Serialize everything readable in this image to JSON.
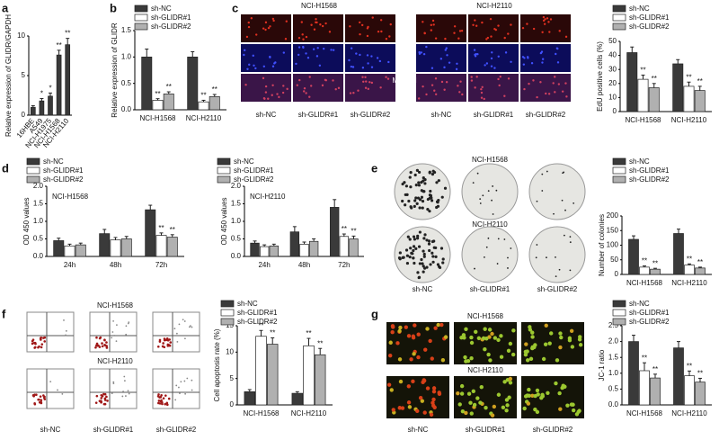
{
  "image_panels": {
    "labels": [
      "a",
      "b",
      "c",
      "d",
      "e",
      "f",
      "g"
    ],
    "c": {
      "cell_lines": [
        "NCI-H1568",
        "NCI-H2110"
      ],
      "stains": [
        "EdU",
        "DAPI",
        "Merged"
      ],
      "groups": [
        "sh-NC",
        "sh-GLIDR#1",
        "sh-GLIDR#2"
      ]
    },
    "e": {
      "cell_lines": [
        "NCI-H1568",
        "NCI-H2110"
      ],
      "groups": [
        "sh-NC",
        "sh-GLIDR#1",
        "sh-GLIDR#2"
      ]
    },
    "f": {
      "cell_lines": [
        "NCI-H1568",
        "NCI-H2110"
      ],
      "groups": [
        "sh-NC",
        "sh-GLIDR#1",
        "sh-GLIDR#2"
      ]
    },
    "g": {
      "cell_lines": [
        "NCI-H1568",
        "NCI-H2110"
      ],
      "groups": [
        "sh-NC",
        "sh-GLIDR#1",
        "sh-GLIDR#2"
      ]
    }
  },
  "chart_data": [
    {
      "type": "bar",
      "ylabel": "Relative expression of GLIDR/GAPDH",
      "categories": [
        "16HBE",
        "A549",
        "NCI-H1975",
        "NCI-H1568",
        "NCI-H2110"
      ],
      "color": "#3a3a3a",
      "values": [
        1,
        1.8,
        2.4,
        7.6,
        8.9
      ],
      "errors": [
        0.2,
        0.3,
        0.4,
        0.6,
        0.8
      ],
      "annotations": [
        null,
        "*",
        "*",
        "**",
        "**"
      ],
      "ylim": [
        0,
        10
      ],
      "yticks": [
        0,
        5,
        10
      ]
    },
    {
      "type": "bar",
      "ylabel": "Relative expression of GLIDR",
      "categories": [
        "NCI-H1568",
        "NCI-H2110"
      ],
      "series": [
        {
          "name": "sh-NC",
          "color": "#3a3a3a",
          "values": [
            1.0,
            1.0
          ],
          "errors": [
            0.15,
            0.1
          ],
          "annotations": [
            null,
            null
          ]
        },
        {
          "name": "sh-GLIDR#1",
          "color": "#ffffff",
          "values": [
            0.18,
            0.15
          ],
          "errors": [
            0.03,
            0.03
          ],
          "annotations": [
            "**",
            "**"
          ]
        },
        {
          "name": "sh-GLIDR#2",
          "color": "#b0b0b0",
          "values": [
            0.3,
            0.25
          ],
          "errors": [
            0.04,
            0.04
          ],
          "annotations": [
            "**",
            "**"
          ]
        }
      ],
      "ylim": [
        0,
        1.5
      ],
      "yticks": [
        {
          "value": 0,
          "label": "0.0"
        },
        {
          "value": 0.5,
          "label": "0.5"
        },
        {
          "value": 1,
          "label": "1.0"
        },
        {
          "value": 1.5,
          "label": "1.5"
        }
      ]
    },
    {
      "type": "bar",
      "ylabel": "EdU positive cells (%)",
      "categories": [
        "NCI-H1568",
        "NCI-H2110"
      ],
      "series": [
        {
          "name": "sh-NC",
          "color": "#3a3a3a",
          "values": [
            42,
            34
          ],
          "errors": [
            4,
            3
          ],
          "annotations": [
            null,
            null
          ]
        },
        {
          "name": "sh-GLIDR#1",
          "color": "#ffffff",
          "values": [
            23,
            18
          ],
          "errors": [
            3,
            3
          ],
          "annotations": [
            "**",
            "**"
          ]
        },
        {
          "name": "sh-GLIDR#2",
          "color": "#b0b0b0",
          "values": [
            17,
            15
          ],
          "errors": [
            3,
            3
          ],
          "annotations": [
            "**",
            "**"
          ]
        }
      ],
      "ylim": [
        0,
        50
      ],
      "yticks": [
        0,
        10,
        20,
        30,
        40,
        50
      ]
    },
    {
      "type": "bar",
      "ylabel": "OD 450 values",
      "subtitle": "NCI-H1568",
      "categories": [
        "24h",
        "48h",
        "72h"
      ],
      "series": [
        {
          "name": "sh-NC",
          "color": "#3a3a3a",
          "values": [
            0.45,
            0.65,
            1.33
          ],
          "errors": [
            0.07,
            0.12,
            0.13
          ],
          "annotations": [
            null,
            null,
            null
          ]
        },
        {
          "name": "sh-GLIDR#1",
          "color": "#ffffff",
          "values": [
            0.3,
            0.47,
            0.6
          ],
          "errors": [
            0.05,
            0.07,
            0.07
          ],
          "annotations": [
            null,
            null,
            "**"
          ]
        },
        {
          "name": "sh-GLIDR#2",
          "color": "#b0b0b0",
          "values": [
            0.33,
            0.5,
            0.55
          ],
          "errors": [
            0.05,
            0.07,
            0.07
          ],
          "annotations": [
            null,
            null,
            "**"
          ]
        }
      ],
      "ylim": [
        0,
        2
      ],
      "yticks": [
        {
          "value": 0,
          "label": "0.0"
        },
        {
          "value": 0.5,
          "label": "0.5"
        },
        {
          "value": 1,
          "label": "1.0"
        },
        {
          "value": 1.5,
          "label": "1.5"
        },
        {
          "value": 2,
          "label": "2.0"
        }
      ]
    },
    {
      "type": "bar",
      "ylabel": "OD 450 values",
      "subtitle": "NCI-H2110",
      "categories": [
        "24h",
        "48h",
        "72h"
      ],
      "series": [
        {
          "name": "sh-NC",
          "color": "#3a3a3a",
          "values": [
            0.38,
            0.7,
            1.4
          ],
          "errors": [
            0.06,
            0.15,
            0.22
          ],
          "annotations": [
            null,
            null,
            null
          ]
        },
        {
          "name": "sh-GLIDR#1",
          "color": "#ffffff",
          "values": [
            0.28,
            0.35,
            0.57
          ],
          "errors": [
            0.05,
            0.06,
            0.07
          ],
          "annotations": [
            null,
            null,
            "**"
          ]
        },
        {
          "name": "sh-GLIDR#2",
          "color": "#b0b0b0",
          "values": [
            0.3,
            0.43,
            0.5
          ],
          "errors": [
            0.05,
            0.07,
            0.08
          ],
          "annotations": [
            null,
            null,
            "**"
          ]
        }
      ],
      "ylim": [
        0,
        2
      ],
      "yticks": [
        {
          "value": 0,
          "label": "0.0"
        },
        {
          "value": 0.5,
          "label": "0.5"
        },
        {
          "value": 1,
          "label": "1.0"
        },
        {
          "value": 1.5,
          "label": "1.5"
        },
        {
          "value": 2,
          "label": "2.0"
        }
      ]
    },
    {
      "type": "bar",
      "ylabel": "Number of colonies",
      "categories": [
        "NCI-H1568",
        "NCI-H2110"
      ],
      "series": [
        {
          "name": "sh-NC",
          "color": "#3a3a3a",
          "values": [
            120,
            140
          ],
          "errors": [
            12,
            15
          ],
          "annotations": [
            null,
            null
          ]
        },
        {
          "name": "sh-GLIDR#1",
          "color": "#ffffff",
          "values": [
            25,
            32
          ],
          "errors": [
            4,
            4
          ],
          "annotations": [
            "**",
            "**"
          ]
        },
        {
          "name": "sh-GLIDR#2",
          "color": "#b0b0b0",
          "values": [
            18,
            22
          ],
          "errors": [
            3,
            3
          ],
          "annotations": [
            "**",
            "**"
          ]
        }
      ],
      "ylim": [
        0,
        200
      ],
      "yticks": [
        0,
        50,
        100,
        150,
        200
      ]
    },
    {
      "type": "bar",
      "ylabel": "Cell apoptosis rate (%)",
      "categories": [
        "NCI-H1568",
        "NCI-H2110"
      ],
      "series": [
        {
          "name": "sh-NC",
          "color": "#3a3a3a",
          "values": [
            2.5,
            2.2
          ],
          "errors": [
            0.4,
            0.3
          ],
          "annotations": [
            null,
            null
          ]
        },
        {
          "name": "sh-GLIDR#1",
          "color": "#ffffff",
          "values": [
            13,
            11.2
          ],
          "errors": [
            1.1,
            1.4
          ],
          "annotations": [
            "**",
            "**"
          ]
        },
        {
          "name": "sh-GLIDR#2",
          "color": "#b0b0b0",
          "values": [
            11.5,
            9.5
          ],
          "errors": [
            1.2,
            1.2
          ],
          "annotations": [
            "**",
            "**"
          ]
        }
      ],
      "ylim": [
        0,
        15
      ],
      "yticks": [
        0,
        5,
        10,
        15
      ]
    },
    {
      "type": "bar",
      "ylabel": "JC-1 ratio",
      "categories": [
        "NCI-H1568",
        "NCI-H2110"
      ],
      "series": [
        {
          "name": "sh-NC",
          "color": "#3a3a3a",
          "values": [
            2.0,
            1.8
          ],
          "errors": [
            0.2,
            0.2
          ],
          "annotations": [
            null,
            null
          ]
        },
        {
          "name": "sh-GLIDR#1",
          "color": "#ffffff",
          "values": [
            1.08,
            0.92
          ],
          "errors": [
            0.25,
            0.15
          ],
          "annotations": [
            "**",
            "**"
          ]
        },
        {
          "name": "sh-GLIDR#2",
          "color": "#b0b0b0",
          "values": [
            0.85,
            0.72
          ],
          "errors": [
            0.12,
            0.12
          ],
          "annotations": [
            "**",
            "**"
          ]
        }
      ],
      "ylim": [
        0,
        2.5
      ],
      "yticks": [
        {
          "value": 0,
          "label": "0.0"
        },
        {
          "value": 0.5,
          "label": "0.5"
        },
        {
          "value": 1,
          "label": "1.0"
        },
        {
          "value": 1.5,
          "label": "1.5"
        },
        {
          "value": 2,
          "label": "2.0"
        },
        {
          "value": 2.5,
          "label": "2.5"
        }
      ]
    }
  ]
}
